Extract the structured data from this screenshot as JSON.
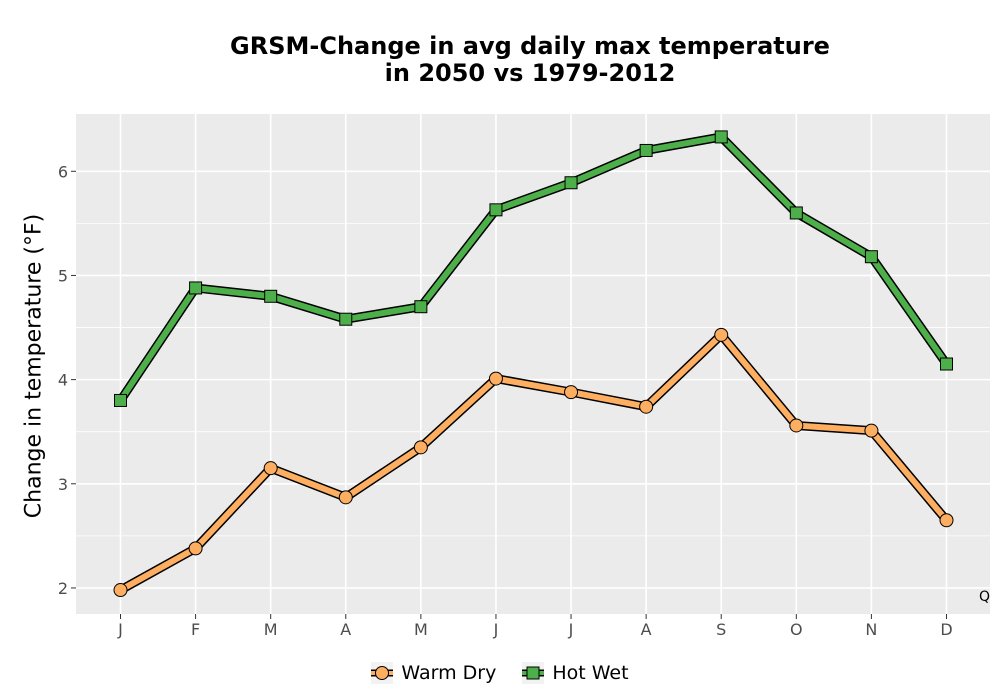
{
  "chart_data": {
    "type": "line",
    "title_line1": "GRSM-Change in avg daily max temperature",
    "title_line2": "in 2050 vs 1979-2012",
    "xlabel": "",
    "ylabel": "Change in temperature (°F)",
    "categories": [
      "J",
      "F",
      "M",
      "A",
      "M",
      "J",
      "J",
      "A",
      "S",
      "O",
      "N",
      "D"
    ],
    "ylim": [
      1.75,
      6.55
    ],
    "yticks": [
      2,
      3,
      4,
      5,
      6
    ],
    "grid": true,
    "legend_position": "bottom",
    "corner_label": "Q",
    "series": [
      {
        "name": "Warm Dry",
        "marker": "circle",
        "color": "#fdae61",
        "values": [
          1.98,
          2.38,
          3.15,
          2.87,
          3.35,
          4.01,
          3.88,
          3.74,
          4.43,
          3.56,
          3.51,
          2.65
        ]
      },
      {
        "name": "Hot Wet",
        "marker": "square",
        "color": "#4daf4a",
        "values": [
          3.8,
          4.88,
          4.8,
          4.58,
          4.7,
          5.63,
          5.89,
          6.2,
          6.33,
          5.6,
          5.18,
          4.15
        ]
      }
    ]
  }
}
